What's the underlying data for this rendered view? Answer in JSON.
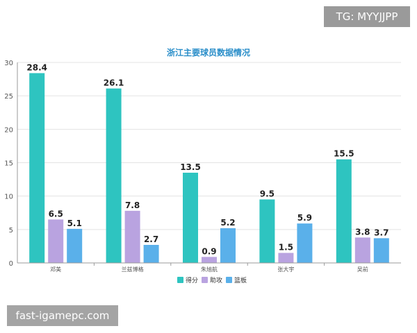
{
  "watermarks": {
    "top_right": "TG: MYYJJPP",
    "bottom_left": "fast-igamepc.com"
  },
  "chart_data": {
    "type": "bar",
    "title": "浙江主要球员数据情况",
    "categories": [
      "邓美",
      "兰兹博格",
      "朱旭航",
      "张大宇",
      "吴前"
    ],
    "series": [
      {
        "name": "得分",
        "color": "#2ec4c0",
        "values": [
          28.4,
          26.1,
          13.5,
          9.5,
          15.5
        ]
      },
      {
        "name": "助攻",
        "color": "#b9a3e0",
        "values": [
          6.5,
          7.8,
          0.9,
          1.5,
          3.8
        ]
      },
      {
        "name": "篮板",
        "color": "#5ab0ea",
        "values": [
          5.1,
          2.7,
          5.2,
          5.9,
          3.7
        ]
      }
    ],
    "ylim": [
      0,
      30
    ],
    "yticks": [
      0,
      5,
      10,
      15,
      20,
      25,
      30
    ],
    "xlabel": "",
    "ylabel": "",
    "grid": true,
    "legend": "bottom",
    "data_labels": true
  }
}
